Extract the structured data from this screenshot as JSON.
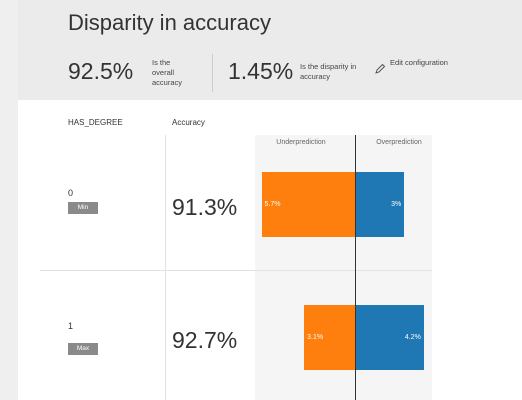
{
  "header": {
    "title": "Disparity in accuracy",
    "metrics": [
      {
        "value": "92.5%",
        "label": "Is the overall accuracy"
      },
      {
        "value": "1.45%",
        "label": "Is the disparity in accuracy"
      }
    ],
    "edit": "Edit configuration"
  },
  "table": {
    "columns": [
      "HAS_DEGREE",
      "Accuracy"
    ],
    "chart_labels": [
      "Underprediction",
      "Overprediction"
    ],
    "colors": [
      "#ff7f0e",
      "#1f77b4"
    ],
    "rows": [
      {
        "group": "0",
        "badge": "Min",
        "accuracy": "91.3%",
        "under": 5.7,
        "under_label": "5.7%",
        "over": 3,
        "over_label": "3%"
      },
      {
        "group": "1",
        "badge": "Max",
        "accuracy": "92.7%",
        "under": 3.1,
        "under_label": "3.1%",
        "over": 4.2,
        "over_label": "4.2%"
      }
    ]
  }
}
